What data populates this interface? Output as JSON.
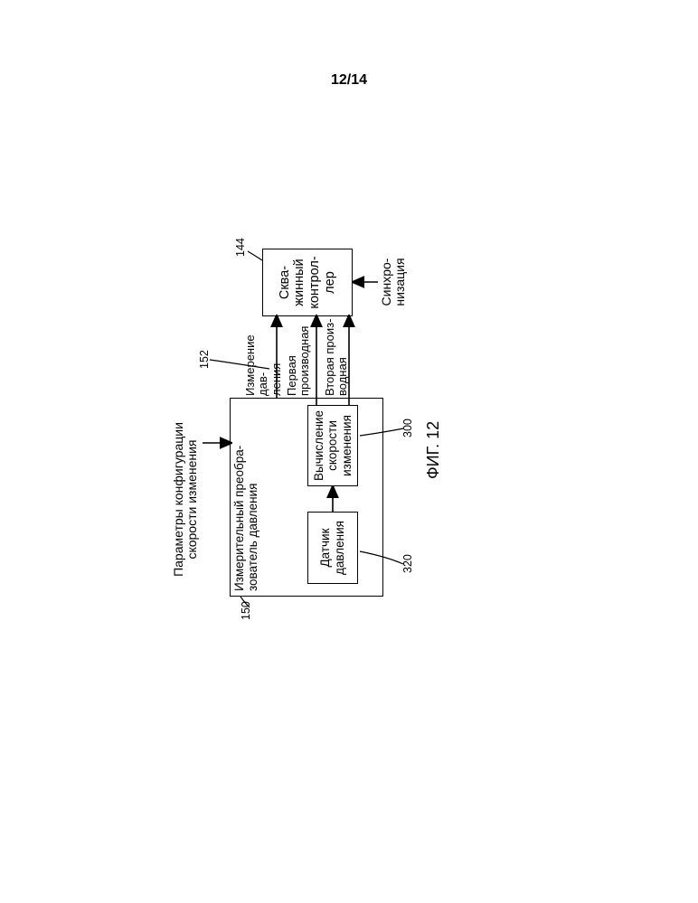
{
  "page_number": "12/14",
  "figure_label": "ФИГ. 12",
  "colors": {
    "stroke": "#000000",
    "background": "#ffffff",
    "text": "#000000"
  },
  "stroke_width_main": 1.6,
  "stroke_width_thin": 1.2,
  "font_family": "Arial",
  "input_top": "Параметры конфигурации\nскорости изменения",
  "input_bottom": "Синхро-\nнизация",
  "transducer": {
    "title": "Измерительный преобра-\nзователь давления",
    "sensor": "Датчик\nдавления",
    "calc": "Вычисление\nскорости\nизменения"
  },
  "controller": "Сква-\nжинный\nконтрол-\nлер",
  "edges": {
    "measurement": "Измерение дав-\nления",
    "first_deriv": "Первая\nпроизводная",
    "second_deriv": "Вторая произ-\nводная"
  },
  "refs": {
    "transducer": "150",
    "assembly": "152",
    "controller": "144",
    "sensor": "320",
    "calc": "300"
  }
}
